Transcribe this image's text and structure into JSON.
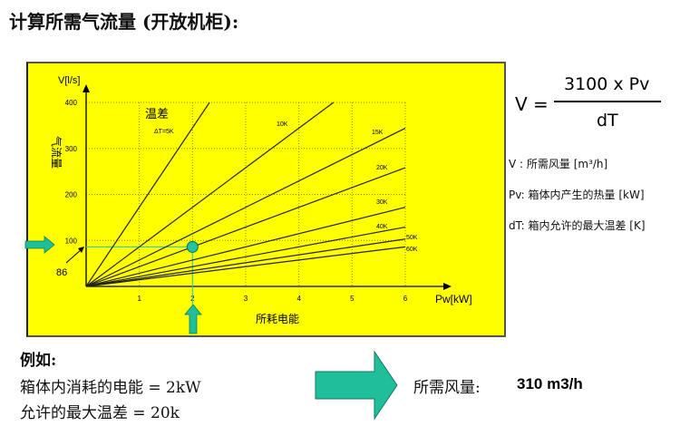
{
  "title": "计算所需气流量 (开放机柜):",
  "colors": {
    "panel": "#ffff00",
    "arrow": "#1ebf9a",
    "guide": "#3ecfb0",
    "point": "#22c4a4"
  },
  "chart_data": {
    "type": "line",
    "xlabel": "Pw[kW]",
    "xlabel_cn": "所耗电能",
    "ylabel": "V[l/s]",
    "ylabel_cn": "气流量",
    "xlim": [
      0,
      6
    ],
    "ylim": [
      0,
      400
    ],
    "xticks": [
      "1",
      "2",
      "3",
      "4",
      "5",
      "6"
    ],
    "yticks": [
      "100",
      "200",
      "300",
      "400"
    ],
    "grid": true,
    "legend_title": "温差",
    "series": [
      {
        "name": "ΔT=5K",
        "x": [
          0,
          2.32
        ],
        "y": [
          0,
          400
        ]
      },
      {
        "name": "10K",
        "x": [
          0,
          4.65
        ],
        "y": [
          0,
          400
        ]
      },
      {
        "name": "15K",
        "x": [
          0,
          6
        ],
        "y": [
          0,
          344
        ]
      },
      {
        "name": "20K",
        "x": [
          0,
          6
        ],
        "y": [
          0,
          258
        ]
      },
      {
        "name": "30K",
        "x": [
          0,
          6
        ],
        "y": [
          0,
          172
        ]
      },
      {
        "name": "40K",
        "x": [
          0,
          6
        ],
        "y": [
          0,
          129
        ]
      },
      {
        "name": "50K",
        "x": [
          0,
          6
        ],
        "y": [
          0,
          103
        ]
      },
      {
        "name": "60K",
        "x": [
          0,
          6
        ],
        "y": [
          0,
          86
        ]
      }
    ],
    "highlight": {
      "x": 2,
      "y": 86,
      "label": "86"
    }
  },
  "formula": {
    "lhs": "V =",
    "numerator": "3100 x Pv",
    "denominator": "dT"
  },
  "definitions": [
    "V :  所需风量 [m³/h]",
    "Pv: 箱体内产生的热量 [kW]",
    "dT: 箱内允许的最大温差 [K]"
  ],
  "example": {
    "heading": "例如:",
    "line1": "箱体内消耗的电能  = 2kW",
    "line2": " 允许的最大温差 = 20k",
    "result_label": "所需风量:",
    "result_value": "310 m3/h"
  }
}
